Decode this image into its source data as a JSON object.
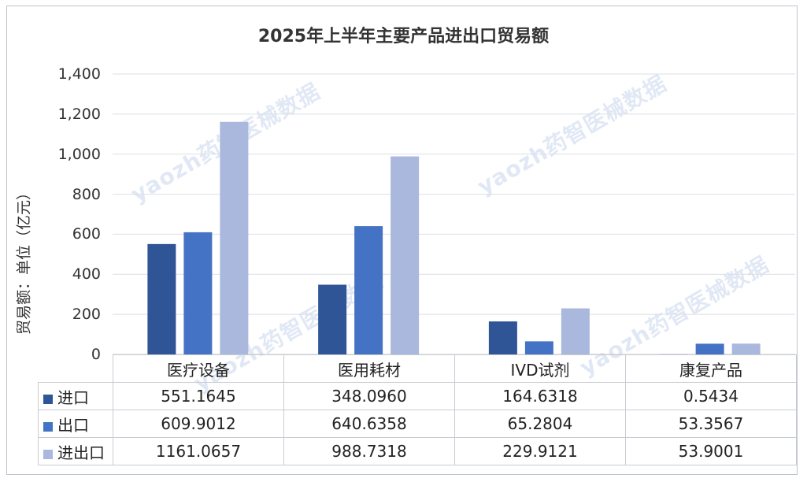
{
  "chart_data": {
    "type": "bar",
    "title": "2025年上半年主要产品进出口贸易额",
    "ylabel": "贸易额：单位（亿元）",
    "ylim": [
      0,
      1400
    ],
    "yticks": [
      "1,400",
      "1,200",
      "1,000",
      "800",
      "600",
      "400",
      "200",
      "0"
    ],
    "categories": [
      "医疗设备",
      "医用耗材",
      "IVD试剂",
      "康复产品"
    ],
    "series": [
      {
        "name": "进口",
        "color": "#2f5597",
        "values": [
          551.1645,
          348.096,
          164.6318,
          0.5434
        ],
        "labels": [
          "551.1645",
          "348.0960",
          "164.6318",
          "0.5434"
        ]
      },
      {
        "name": "出口",
        "color": "#4472c4",
        "values": [
          609.9012,
          640.6358,
          65.2804,
          53.3567
        ],
        "labels": [
          "609.9012",
          "640.6358",
          "65.2804",
          "53.3567"
        ]
      },
      {
        "name": "进出口",
        "color": "#a9b8dc",
        "values": [
          1161.0657,
          988.7318,
          229.9121,
          53.9001
        ],
        "labels": [
          "1161.0657",
          "988.7318",
          "229.9121",
          "53.9001"
        ]
      }
    ],
    "grid": true,
    "legend": "data-table"
  },
  "watermark": "yaozh药智医械数据"
}
